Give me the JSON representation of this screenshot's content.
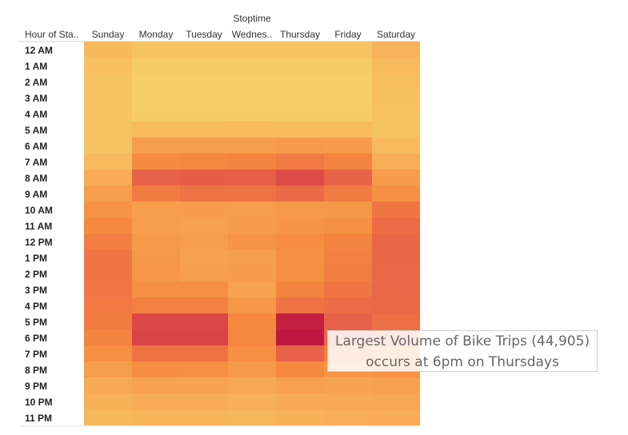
{
  "chart_data": {
    "type": "heatmap",
    "title": "",
    "column_group_label": "Stoptime",
    "row_header": "Hour of Sta..",
    "columns": [
      "Sunday",
      "Monday",
      "Tuesday",
      "Wednes..",
      "Thursday",
      "Friday",
      "Saturday"
    ],
    "rows": [
      "12 AM",
      "1 AM",
      "2 AM",
      "3 AM",
      "4 AM",
      "5 AM",
      "6 AM",
      "7 AM",
      "8 AM",
      "9 AM",
      "10 AM",
      "11 AM",
      "12 PM",
      "1 PM",
      "2 PM",
      "3 PM",
      "4 PM",
      "5 PM",
      "6 PM",
      "7 PM",
      "8 PM",
      "9 PM",
      "10 PM",
      "11 PM"
    ],
    "value_range": [
      0,
      44905
    ],
    "color_scale": [
      "#f5dd72",
      "#f7b55a",
      "#f6893f",
      "#e4584a",
      "#bf1840"
    ],
    "values": [
      [
        10200,
        7500,
        7500,
        7500,
        7500,
        7500,
        11800
      ],
      [
        8500,
        5200,
        5200,
        5200,
        5200,
        5200,
        9500
      ],
      [
        7500,
        4600,
        4600,
        4600,
        4600,
        4600,
        8700
      ],
      [
        7200,
        4400,
        4400,
        4400,
        4400,
        4400,
        8300
      ],
      [
        7500,
        4900,
        4900,
        4900,
        4900,
        4900,
        7900
      ],
      [
        7200,
        9500,
        9500,
        9700,
        9500,
        9500,
        7200
      ],
      [
        7400,
        17000,
        17000,
        17000,
        18000,
        17500,
        9500
      ],
      [
        9800,
        22000,
        23000,
        23500,
        26000,
        23500,
        13000
      ],
      [
        13500,
        31500,
        32500,
        32000,
        36000,
        31000,
        17500
      ],
      [
        17000,
        25500,
        27500,
        27500,
        29500,
        25500,
        20500
      ],
      [
        20000,
        17000,
        17500,
        17000,
        18000,
        18500,
        27000
      ],
      [
        22500,
        17000,
        16500,
        17500,
        19500,
        20500,
        29000
      ],
      [
        25000,
        18000,
        17000,
        19500,
        21500,
        23500,
        30500
      ],
      [
        27000,
        18500,
        16500,
        17000,
        21000,
        24500,
        30500
      ],
      [
        27000,
        19000,
        17000,
        17500,
        21000,
        25000,
        30000
      ],
      [
        26500,
        20500,
        20500,
        16000,
        23500,
        27000,
        30000
      ],
      [
        26000,
        24500,
        24500,
        19000,
        27500,
        29000,
        29500
      ],
      [
        25500,
        36500,
        36500,
        22500,
        43500,
        31500,
        28500
      ],
      [
        23500,
        37000,
        37000,
        23000,
        44905,
        30500,
        27000
      ],
      [
        21000,
        27500,
        27500,
        21000,
        31500,
        24000,
        23500
      ],
      [
        17000,
        21500,
        21000,
        18000,
        22500,
        19000,
        20000
      ],
      [
        14000,
        16000,
        15500,
        14500,
        16500,
        15500,
        16500
      ],
      [
        12000,
        13500,
        13500,
        12500,
        14000,
        14500,
        15000
      ],
      [
        10500,
        11500,
        11500,
        11000,
        12000,
        13000,
        13500
      ]
    ],
    "annotation": {
      "line1": "Largest Volume of Bike Trips (44,905)",
      "line2": "occurs at 6pm on Thursdays"
    }
  }
}
